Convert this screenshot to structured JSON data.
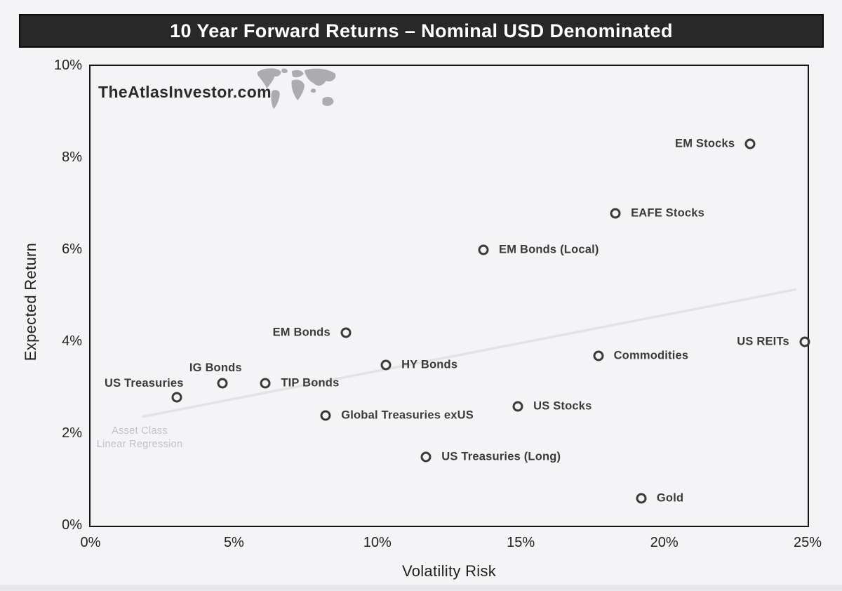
{
  "title": "10 Year Forward Returns – Nominal USD Denominated",
  "watermark": "TheAtlasInvestor.com",
  "colors": {
    "title_bar_bg": "#282828",
    "title_text": "#ffffff",
    "page_bg": "#f4f4f6",
    "plot_border": "#151515",
    "marker": "#3a3a3a",
    "point_label": "#3a3a3a",
    "regression_line": "#e3e3e5",
    "legend_text": "#c2c2c6",
    "tick_text": "#222222"
  },
  "chart_data": {
    "type": "scatter",
    "title": "10 Year Forward Returns – Nominal USD Denominated",
    "xlabel": "Volatility Risk",
    "ylabel": "Expected Return",
    "xlim": [
      0,
      25
    ],
    "ylim": [
      0,
      10
    ],
    "grid": false,
    "x_tick_values": [
      0,
      5,
      10,
      15,
      20,
      25
    ],
    "x_tick_labels": [
      "0%",
      "5%",
      "10%",
      "15%",
      "20%",
      "25%"
    ],
    "y_tick_values": [
      0,
      2,
      4,
      6,
      8,
      10
    ],
    "y_tick_labels": [
      "0%",
      "2%",
      "4%",
      "6%",
      "8%",
      "10%"
    ],
    "points": [
      {
        "label": "EM Stocks",
        "x": 23.0,
        "y": 8.3,
        "label_side": "left"
      },
      {
        "label": "EAFE Stocks",
        "x": 18.3,
        "y": 6.8,
        "label_side": "right"
      },
      {
        "label": "EM Bonds (Local)",
        "x": 13.7,
        "y": 6.0,
        "label_side": "right"
      },
      {
        "label": "EM Bonds",
        "x": 8.9,
        "y": 4.2,
        "label_side": "left"
      },
      {
        "label": "US REITs",
        "x": 24.9,
        "y": 4.0,
        "label_side": "left"
      },
      {
        "label": "Commodities",
        "x": 17.7,
        "y": 3.7,
        "label_side": "right"
      },
      {
        "label": "HY Bonds",
        "x": 10.3,
        "y": 3.5,
        "label_side": "right"
      },
      {
        "label": "IG Bonds",
        "x": 4.6,
        "y": 3.1,
        "label_side": "above"
      },
      {
        "label": "TIP Bonds",
        "x": 6.1,
        "y": 3.1,
        "label_side": "right"
      },
      {
        "label": "US Treasuries",
        "x": 3.0,
        "y": 2.8,
        "label_side": "above-left"
      },
      {
        "label": "US Stocks",
        "x": 14.9,
        "y": 2.6,
        "label_side": "right"
      },
      {
        "label": "Global Treasuries exUS",
        "x": 8.2,
        "y": 2.4,
        "label_side": "right"
      },
      {
        "label": "US Treasuries (Long)",
        "x": 11.7,
        "y": 1.5,
        "label_side": "right"
      },
      {
        "label": "Gold",
        "x": 19.2,
        "y": 0.6,
        "label_side": "right"
      }
    ],
    "regression_line": {
      "x1": 1.8,
      "y1": 2.37,
      "x2": 24.6,
      "y2": 5.14
    },
    "legend": [
      "Asset Class",
      "Linear Regression"
    ],
    "legend_position": "inside-lower-left"
  }
}
